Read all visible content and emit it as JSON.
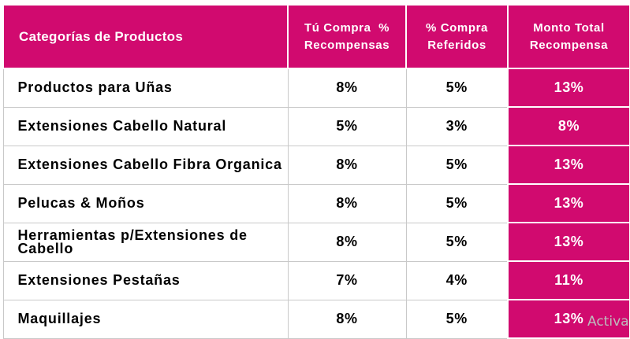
{
  "table": {
    "headers": {
      "category": "Categorías de Productos",
      "purchase_line1": "Tú Compra  %",
      "purchase_line2": "Recompensas",
      "referral_line1": "% Compra",
      "referral_line2": "Referidos",
      "total_line1": "Monto Total",
      "total_line2": "Recompensa"
    },
    "rows": [
      {
        "category": "Productos para Uñas",
        "purchase": "8%",
        "referral": "5%",
        "total": "13%"
      },
      {
        "category": "Extensiones Cabello Natural",
        "purchase": "5%",
        "referral": "3%",
        "total": "8%"
      },
      {
        "category": "Extensiones Cabello Fibra Organica",
        "purchase": "8%",
        "referral": "5%",
        "total": "13%"
      },
      {
        "category": "Pelucas & Moños",
        "purchase": "8%",
        "referral": "5%",
        "total": "13%"
      },
      {
        "category": "Herramientas p/Extensiones de Cabello",
        "purchase": "8%",
        "referral": "5%",
        "total": "13%"
      },
      {
        "category": "Extensiones Pestañas",
        "purchase": "7%",
        "referral": "4%",
        "total": "11%"
      },
      {
        "category": "Maquillajes",
        "purchase": "8%",
        "referral": "5%",
        "total": "13%"
      }
    ]
  },
  "watermark": "Activa",
  "colors": {
    "accent": "#d10a6f",
    "header_text": "#ffffff",
    "body_text": "#000000",
    "grid": "#c9c9c9"
  }
}
